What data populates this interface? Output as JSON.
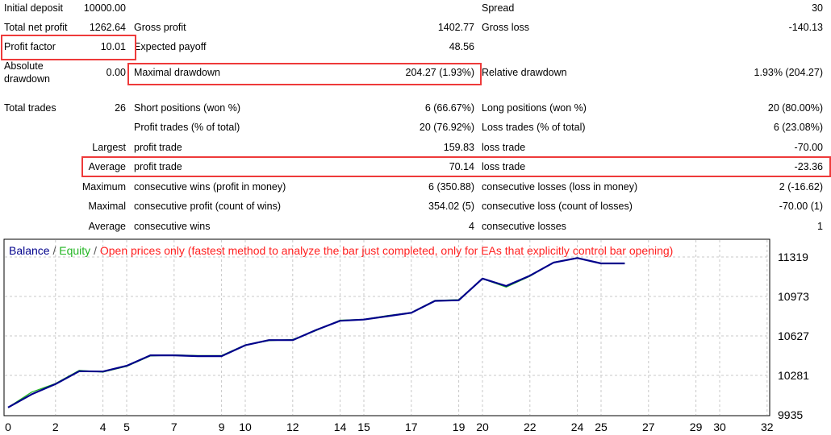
{
  "stats": {
    "initial_deposit": {
      "label": "Initial deposit",
      "value": "10000.00"
    },
    "spread": {
      "label": "Spread",
      "value": "30"
    },
    "total_net_profit": {
      "label": "Total net profit",
      "value": "1262.64"
    },
    "gross_profit": {
      "label": "Gross profit",
      "value": "1402.77"
    },
    "gross_loss": {
      "label": "Gross loss",
      "value": "-140.13"
    },
    "profit_factor": {
      "label": "Profit factor",
      "value": "10.01"
    },
    "expected_payoff": {
      "label": "Expected payoff",
      "value": "48.56"
    },
    "absolute_drawdown": {
      "label_line1": "Absolute",
      "label_line2": "drawdown",
      "value": "0.00"
    },
    "maximal_drawdown": {
      "label": "Maximal drawdown",
      "value": "204.27 (1.93%)"
    },
    "relative_drawdown": {
      "label": "Relative drawdown",
      "value": "1.93% (204.27)"
    },
    "total_trades": {
      "label": "Total trades",
      "value": "26"
    },
    "short_positions": {
      "label": "Short positions (won %)",
      "value": "6 (66.67%)"
    },
    "long_positions": {
      "label": "Long positions (won %)",
      "value": "20 (80.00%)"
    },
    "profit_trades": {
      "label": "Profit trades (% of total)",
      "value": "20 (76.92%)"
    },
    "loss_trades": {
      "label": "Loss trades (% of total)",
      "value": "6 (23.08%)"
    },
    "largest": {
      "label": "Largest",
      "profit_label": "profit trade",
      "profit_value": "159.83",
      "loss_label": "loss trade",
      "loss_value": "-70.00"
    },
    "average": {
      "label": "Average",
      "profit_label": "profit trade",
      "profit_value": "70.14",
      "loss_label": "loss trade",
      "loss_value": "-23.36"
    },
    "maximum": {
      "label": "Maximum",
      "wins_label": "consecutive wins (profit in money)",
      "wins_value": "6 (350.88)",
      "losses_label": "consecutive losses (loss in money)",
      "losses_value": "2 (-16.62)"
    },
    "maximal": {
      "label": "Maximal",
      "profit_label": "consecutive profit (count of wins)",
      "profit_value": "354.02 (5)",
      "loss_label": "consecutive loss (count of losses)",
      "loss_value": "-70.00 (1)"
    },
    "average_consec": {
      "label": "Average",
      "wins_label": "consecutive wins",
      "wins_value": "4",
      "losses_label": "consecutive losses",
      "losses_value": "1"
    }
  },
  "colors": {
    "balance": "#00008b",
    "equity": "#22b522",
    "mode": "#ff2020",
    "highlight": "#ee3a3a",
    "grid": "#c8c8c8"
  },
  "chart_data": {
    "type": "line",
    "legend": {
      "balance": "Balance",
      "sep1": " / ",
      "equity": "Equity",
      "sep2": " / ",
      "mode": "Open prices only (fastest method to analyze the bar just completed, only for EAs that explicitly control bar opening)"
    },
    "x_ticks": [
      0,
      2,
      4,
      5,
      7,
      9,
      10,
      12,
      14,
      15,
      17,
      19,
      20,
      22,
      24,
      25,
      27,
      29,
      30,
      32
    ],
    "y_ticks": [
      11319,
      10973,
      10627,
      10281,
      9935
    ],
    "xlim": [
      0,
      32
    ],
    "ylim": [
      9935,
      11319
    ],
    "series": [
      {
        "name": "Balance",
        "x": [
          0,
          1,
          2,
          3,
          4,
          5,
          6,
          7,
          8,
          9,
          10,
          11,
          12,
          13,
          14,
          15,
          16,
          17,
          18,
          19,
          20,
          21,
          22,
          23,
          24,
          25,
          26
        ],
        "values": [
          10000,
          10116,
          10205,
          10318,
          10315,
          10365,
          10457,
          10457,
          10450,
          10450,
          10545,
          10590,
          10590,
          10680,
          10760,
          10770,
          10800,
          10830,
          10934,
          10940,
          11130,
          11065,
          11155,
          11270,
          11310,
          11262.64,
          11262.64
        ]
      },
      {
        "name": "Equity",
        "x": [
          0,
          1,
          2,
          3,
          4,
          5,
          6,
          7,
          8,
          9,
          10,
          11,
          12,
          13,
          14,
          15,
          16,
          17,
          18,
          19,
          20,
          21,
          22,
          23,
          24,
          25,
          26
        ],
        "values": [
          10000,
          10135,
          10210,
          10325,
          10310,
          10360,
          10452,
          10460,
          10455,
          10455,
          10548,
          10585,
          10595,
          10675,
          10765,
          10772,
          10805,
          10832,
          10938,
          10945,
          11128,
          11055,
          11150,
          11272,
          11312,
          11262.64,
          11262.64
        ]
      }
    ]
  }
}
